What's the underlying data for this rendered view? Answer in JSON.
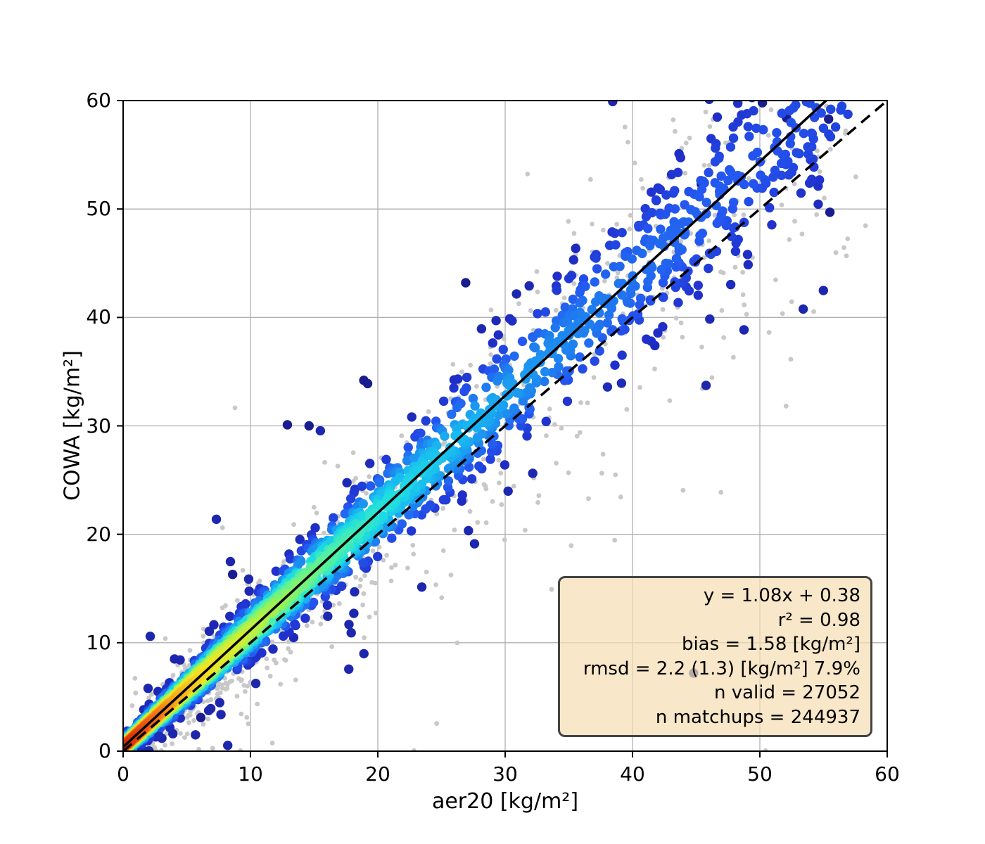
{
  "figure": {
    "background": "#ffffff"
  },
  "chart_data": {
    "type": "scatter",
    "title": "",
    "xlabel": "aer20 [kg/m²]",
    "ylabel": "COWA [kg/m²]",
    "xlim": [
      0,
      60
    ],
    "ylim": [
      0,
      60
    ],
    "xticks": [
      0,
      10,
      20,
      30,
      40,
      50,
      60
    ],
    "yticks": [
      0,
      10,
      20,
      30,
      40,
      50,
      60
    ],
    "grid": true,
    "grid_color": "#b0b0b0",
    "axis_color": "#000000",
    "legend": "none",
    "identity_line": {
      "name": "one-to-one-line",
      "style": "dashed",
      "color": "#000000",
      "x": [
        0,
        60
      ],
      "y": [
        0,
        60
      ],
      "width": 3.5,
      "dash": [
        16,
        10
      ]
    },
    "regression_line": {
      "name": "fit-line",
      "style": "solid",
      "color": "#000000",
      "slope": 1.08,
      "intercept": 0.38,
      "width": 3.5
    },
    "stats_box": {
      "lines": [
        "y = 1.08x + 0.38",
        "r² = 0.98",
        "bias = 1.58 [kg/m²]",
        "rmsd = 2.2 (1.3) [kg/m²] 7.9%",
        "n valid = 27052",
        "n matchups = 244937"
      ],
      "bg_color": "#f5deb3",
      "bg_alpha": 0.72,
      "border_color": "#444444",
      "text_color": "#000000"
    },
    "stats": {
      "slope": 1.08,
      "intercept": 0.38,
      "r2": 0.98,
      "bias": 1.58,
      "bias_units": "kg/m²",
      "rmsd": 2.2,
      "rmsd_robust": 1.3,
      "rmsd_units": "kg/m²",
      "rmsd_percent": 7.9,
      "n_valid": 27052,
      "n_matchups": 244937
    },
    "seed": 7,
    "series": [
      {
        "name": "all-matchups",
        "color": "#c8c8c8",
        "radius": 3.4,
        "n": 1300,
        "slope": 1.05,
        "intercept": 0.1,
        "sigma_base": 0.55,
        "sigma_scale": 0.16,
        "wild_frac": 0.07,
        "wild_mult": 3.0,
        "x_dist": {
          "exp_frac": 0.52,
          "exp_scale": 7.5,
          "flat_min": 1.5,
          "flat_max": 58.5,
          "flat_pow": 1.3
        }
      },
      {
        "name": "valid-matchups-density",
        "radius": 6.7,
        "n": 2900,
        "slope": 1.08,
        "intercept": 0.38,
        "sigma_base": 0.3,
        "sigma_scale": 0.085,
        "wild_frac": 0.04,
        "wild_mult": 3.6,
        "x_dist": {
          "exp_frac": 0.55,
          "exp_scale": 6.5,
          "flat_min": 1.0,
          "flat_max": 57.0,
          "flat_pow": 1.4
        },
        "density_color": {
          "x_scale": 14,
          "core_base": 0.32,
          "core_scale": 0.062,
          "power": 0.52,
          "idx_min": 0.05,
          "idx_span": 0.95
        },
        "colormap": [
          [
            0.0,
            "#191d90"
          ],
          [
            0.1,
            "#2030cc"
          ],
          [
            0.2,
            "#2455f0"
          ],
          [
            0.3,
            "#1e82f0"
          ],
          [
            0.4,
            "#18b8f2"
          ],
          [
            0.48,
            "#1edee0"
          ],
          [
            0.56,
            "#4ef0aa"
          ],
          [
            0.64,
            "#90f25e"
          ],
          [
            0.72,
            "#ccf038"
          ],
          [
            0.8,
            "#f5e224"
          ],
          [
            0.87,
            "#f6a81c"
          ],
          [
            0.93,
            "#f06014"
          ],
          [
            1.0,
            "#d92508"
          ]
        ]
      }
    ],
    "outlier_points": [
      [
        44.8,
        7.2
      ],
      [
        6.1,
        3.1
      ],
      [
        14.6,
        30.0
      ],
      [
        18.9,
        34.2
      ],
      [
        55.5,
        49.7
      ],
      [
        26.9,
        43.2
      ],
      [
        50.2,
        59.8
      ],
      [
        52.1,
        58.4
      ],
      [
        45.4,
        52.3
      ],
      [
        12.9,
        30.1
      ],
      [
        19.2,
        33.9
      ],
      [
        8.6,
        16.3
      ],
      [
        55.4,
        58.3
      ]
    ]
  }
}
